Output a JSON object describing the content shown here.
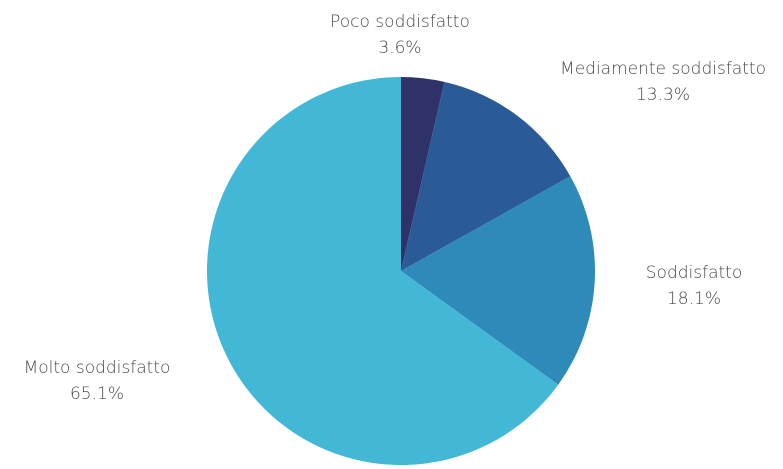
{
  "chart_data": {
    "type": "pie",
    "title": "",
    "slices": [
      {
        "label": "Poco soddisfatto",
        "value": 3.6,
        "value_label": "3.6%",
        "color": "#2f3268"
      },
      {
        "label": "Mediamente soddisfatto",
        "value": 13.3,
        "value_label": "13.3%",
        "color": "#2a5b97"
      },
      {
        "label": "Soddisfatto",
        "value": 18.1,
        "value_label": "18.1%",
        "color": "#2e8ab9"
      },
      {
        "label": "Molto soddisfatto",
        "value": 65.1,
        "value_label": "65.1%",
        "color": "#43b7d6"
      }
    ],
    "start_angle_deg": 0,
    "direction": "clockwise",
    "legend": "none"
  }
}
